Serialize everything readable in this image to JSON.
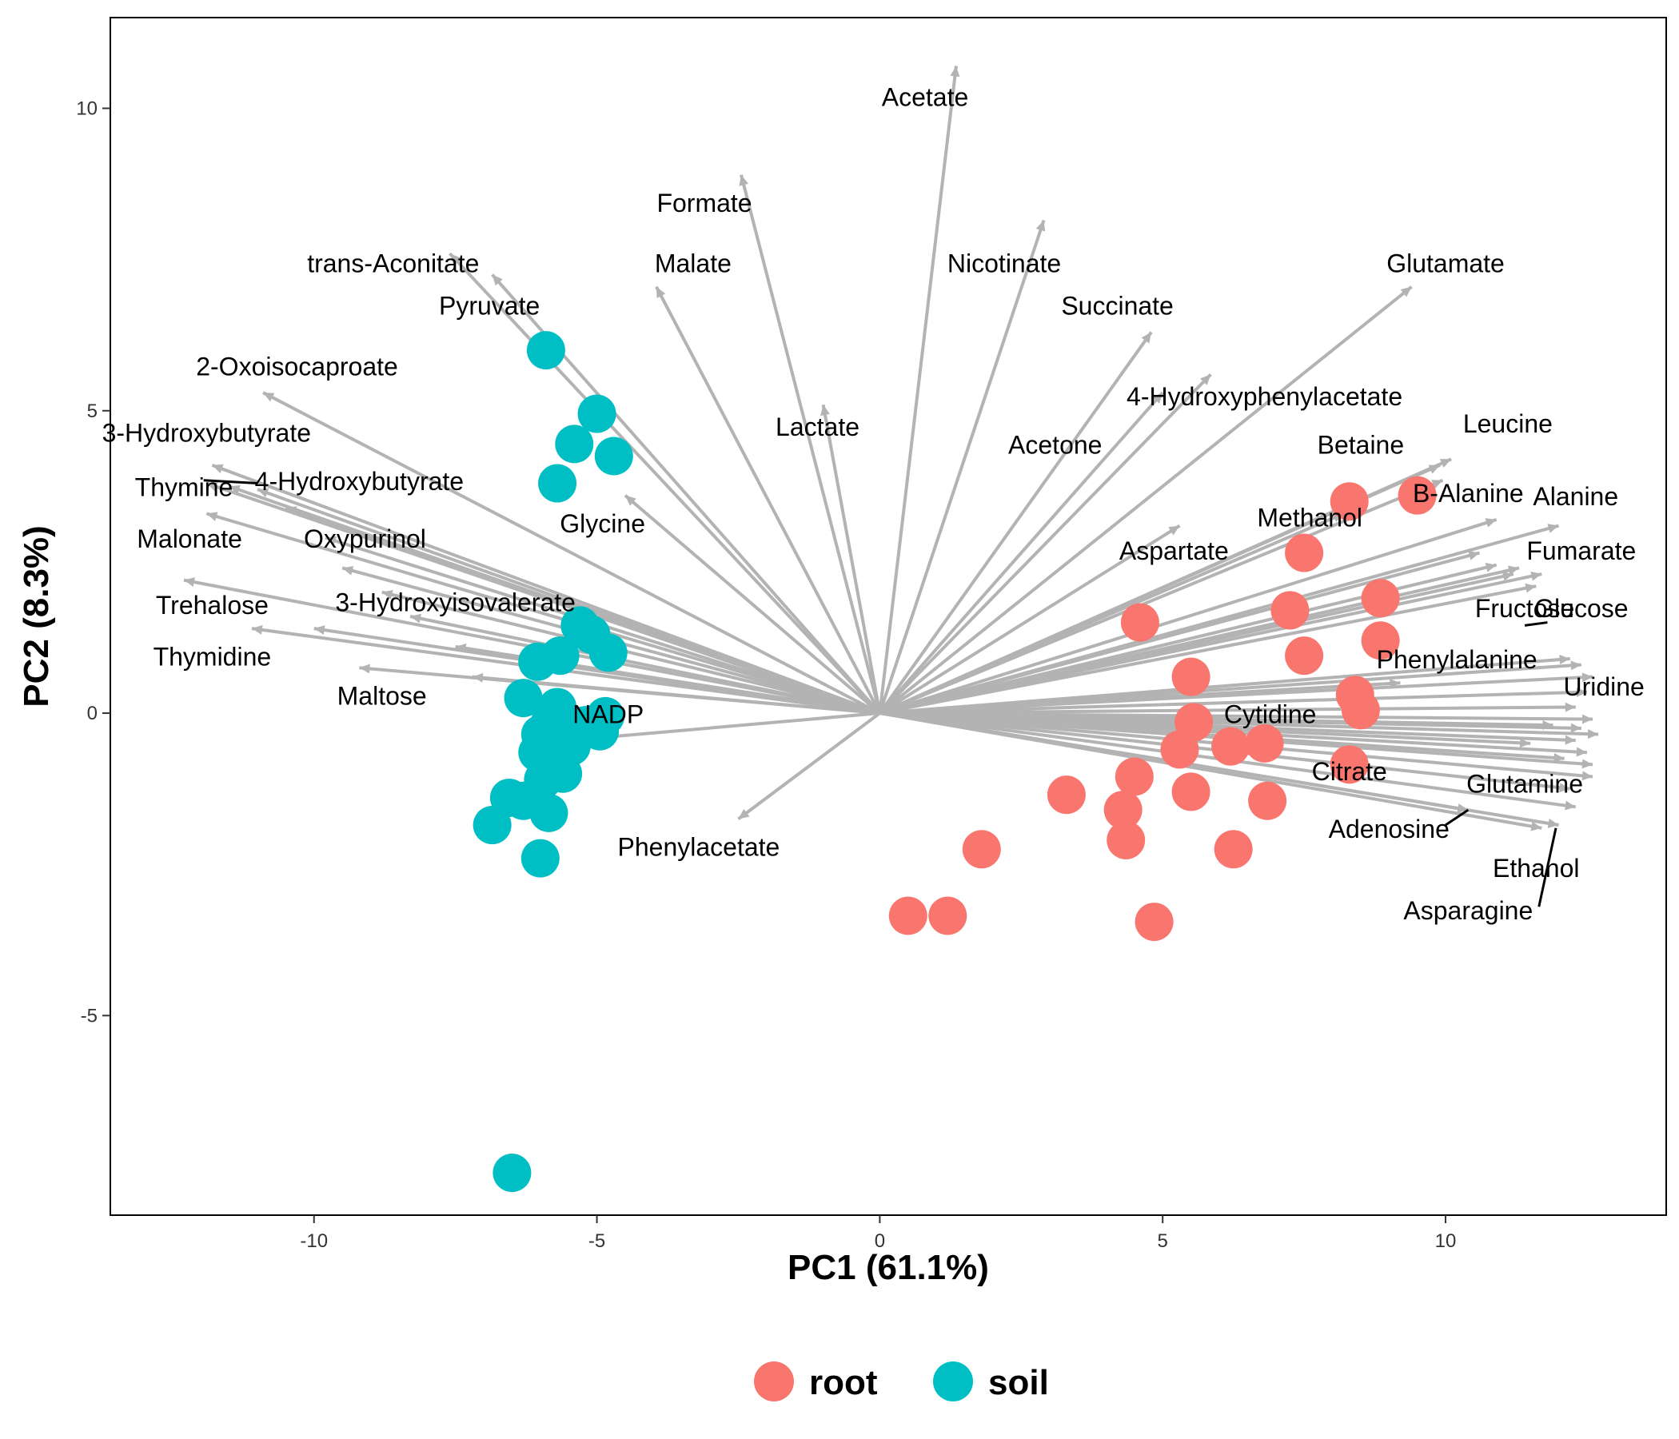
{
  "chart_data": {
    "type": "scatter",
    "subtype": "pca-biplot",
    "xlabel": "PC1 (61.1%)",
    "ylabel": "PC2 (8.3%)",
    "xlim": [
      -13.6,
      13.9
    ],
    "ylim": [
      -8.3,
      11.5
    ],
    "xticks": [
      -10,
      -5,
      0,
      5,
      10
    ],
    "yticks": [
      -5,
      0,
      5,
      10
    ],
    "xtick_labels": [
      "-10",
      "-5",
      "0",
      "5",
      "10"
    ],
    "ytick_labels": [
      "-5",
      "0",
      "5",
      "10"
    ],
    "grid": false,
    "legend_position": "bottom",
    "colors": {
      "root": "#F8766D",
      "soil": "#00BFC4",
      "arrow": "#b3b3b3"
    },
    "legend": [
      {
        "name": "root",
        "color": "#F8766D"
      },
      {
        "name": "soil",
        "color": "#00BFC4"
      }
    ],
    "series": [
      {
        "name": "root",
        "color": "#F8766D",
        "points": [
          [
            8.3,
            3.5
          ],
          [
            9.5,
            3.6
          ],
          [
            7.5,
            2.65
          ],
          [
            8.85,
            1.9
          ],
          [
            7.25,
            1.7
          ],
          [
            8.85,
            1.2
          ],
          [
            7.5,
            0.95
          ],
          [
            4.6,
            1.5
          ],
          [
            5.5,
            0.6
          ],
          [
            8.4,
            0.3
          ],
          [
            8.5,
            0.05
          ],
          [
            5.55,
            -0.15
          ],
          [
            6.8,
            -0.5
          ],
          [
            6.2,
            -0.55
          ],
          [
            5.3,
            -0.6
          ],
          [
            8.3,
            -0.85
          ],
          [
            4.5,
            -1.05
          ],
          [
            5.5,
            -1.3
          ],
          [
            3.3,
            -1.35
          ],
          [
            6.85,
            -1.45
          ],
          [
            4.3,
            -1.6
          ],
          [
            4.35,
            -2.1
          ],
          [
            1.8,
            -2.25
          ],
          [
            6.25,
            -2.25
          ],
          [
            0.5,
            -3.35
          ],
          [
            1.2,
            -3.35
          ],
          [
            4.85,
            -3.45
          ]
        ]
      },
      {
        "name": "soil",
        "color": "#00BFC4",
        "points": [
          [
            -5.9,
            6.0
          ],
          [
            -5.0,
            4.95
          ],
          [
            -5.4,
            4.45
          ],
          [
            -4.7,
            4.25
          ],
          [
            -5.7,
            3.8
          ],
          [
            -5.3,
            1.45
          ],
          [
            -5.1,
            1.3
          ],
          [
            -4.8,
            1.0
          ],
          [
            -5.65,
            0.95
          ],
          [
            -6.05,
            0.85
          ],
          [
            -6.3,
            0.25
          ],
          [
            -5.7,
            0.1
          ],
          [
            -5.85,
            -0.2
          ],
          [
            -6.0,
            -0.35
          ],
          [
            -5.2,
            -0.2
          ],
          [
            -4.85,
            -0.05
          ],
          [
            -5.55,
            -0.45
          ],
          [
            -4.95,
            -0.3
          ],
          [
            -5.45,
            -0.55
          ],
          [
            -6.05,
            -0.65
          ],
          [
            -5.75,
            -0.7
          ],
          [
            -5.6,
            -1.0
          ],
          [
            -5.95,
            -1.1
          ],
          [
            -6.55,
            -1.4
          ],
          [
            -6.3,
            -1.45
          ],
          [
            -5.85,
            -1.65
          ],
          [
            -6.85,
            -1.85
          ],
          [
            -6.0,
            -2.4
          ],
          [
            -6.5,
            -7.6
          ]
        ]
      }
    ],
    "loadings": [
      {
        "name": "Acetate",
        "x": 1.35,
        "y": 10.7,
        "label_x": 0.8,
        "label_y": 10.15
      },
      {
        "name": "Formate",
        "x": -2.45,
        "y": 8.9,
        "label_x": -3.1,
        "label_y": 8.4
      },
      {
        "name": "Nicotinate",
        "x": 2.9,
        "y": 8.15,
        "label_x": 2.2,
        "label_y": 7.4
      },
      {
        "name": "trans-Aconitate",
        "x": -7.6,
        "y": 7.6,
        "label_x": -8.6,
        "label_y": 7.4
      },
      {
        "name": "Malate",
        "x": -3.95,
        "y": 7.05,
        "label_x": -3.3,
        "label_y": 7.4
      },
      {
        "name": "Pyruvate",
        "x": -6.85,
        "y": 7.25,
        "label_x": -6.9,
        "label_y": 6.7
      },
      {
        "name": "Glutamate",
        "x": 9.4,
        "y": 7.05,
        "label_x": 10.0,
        "label_y": 7.4
      },
      {
        "name": "Succinate",
        "x": 4.8,
        "y": 6.3,
        "label_x": 4.2,
        "label_y": 6.7
      },
      {
        "name": "4-Hydroxyphenylacetate",
        "x": 5.85,
        "y": 5.6,
        "label_x": 6.8,
        "label_y": 5.2
      },
      {
        "name": "2-Oxoisocaproate",
        "x": -10.9,
        "y": 5.3,
        "label_x": -10.3,
        "label_y": 5.7
      },
      {
        "name": "Lactate",
        "x": -1.0,
        "y": 5.1,
        "label_x": -1.1,
        "label_y": 4.7
      },
      {
        "name": "Acetone",
        "x": 5.0,
        "y": 5.3,
        "label_x": 3.1,
        "label_y": 4.4
      },
      {
        "name": "3-Hydroxybutyrate",
        "x": -11.8,
        "y": 4.1,
        "label_x": -11.9,
        "label_y": 4.6
      },
      {
        "name": "Leucine",
        "x": 10.1,
        "y": 4.2,
        "label_x": 11.1,
        "label_y": 4.75
      },
      {
        "name": "Betaine",
        "x": 9.9,
        "y": 4.1,
        "label_x": 8.5,
        "label_y": 4.4
      },
      {
        "name": "Thymine",
        "x": -11.9,
        "y": 3.8,
        "label_x": -12.3,
        "label_y": 3.7
      },
      {
        "name": "4-Hydroxybutyrate",
        "x": -11.5,
        "y": 3.75,
        "label_x": -9.2,
        "label_y": 3.8
      },
      {
        "name": "Glycine",
        "x": -4.5,
        "y": 3.6,
        "label_x": -4.9,
        "label_y": 3.1
      },
      {
        "name": "B-Alanine",
        "x": 9.95,
        "y": 3.85,
        "label_x": 10.4,
        "label_y": 3.6
      },
      {
        "name": "Alanine",
        "x": 10.9,
        "y": 3.2,
        "label_x": 12.3,
        "label_y": 3.55
      },
      {
        "name": "Methanol",
        "x": 8.2,
        "y": 3.3,
        "label_x": 7.6,
        "label_y": 3.2
      },
      {
        "name": "Malonate",
        "x": -11.9,
        "y": 3.3,
        "label_x": -12.2,
        "label_y": 2.85
      },
      {
        "name": "Oxypurinol",
        "x": -9.5,
        "y": 2.4,
        "label_x": -9.1,
        "label_y": 2.85
      },
      {
        "name": "Aspartate",
        "x": 5.3,
        "y": 3.1,
        "label_x": 5.2,
        "label_y": 2.65
      },
      {
        "name": "Fumarate",
        "x": 12.0,
        "y": 3.1,
        "label_x": 12.4,
        "label_y": 2.65
      },
      {
        "name": "Trehalose",
        "x": -12.3,
        "y": 2.2,
        "label_x": -11.8,
        "label_y": 1.75
      },
      {
        "name": "3-Hydroxyisovalerate",
        "x": -10.0,
        "y": 1.4,
        "label_x": -7.5,
        "label_y": 1.8
      },
      {
        "name": "Glucose",
        "x": 11.7,
        "y": 2.3,
        "label_x": 12.4,
        "label_y": 1.7
      },
      {
        "name": "Fructose",
        "x": 11.3,
        "y": 2.4,
        "label_x": 11.4,
        "label_y": 1.7
      },
      {
        "name": "Thymidine",
        "x": -11.1,
        "y": 1.4,
        "label_x": -11.8,
        "label_y": 0.9
      },
      {
        "name": "Phenylalanine",
        "x": 9.2,
        "y": 0.5,
        "label_x": 10.2,
        "label_y": 0.85
      },
      {
        "name": "Maltose",
        "x": -9.2,
        "y": 0.75,
        "label_x": -8.8,
        "label_y": 0.25
      },
      {
        "name": "Uridine",
        "x": 12.2,
        "y": 0.9,
        "label_x": 12.8,
        "label_y": 0.4
      },
      {
        "name": "NADP",
        "x": -5.5,
        "y": -0.45,
        "label_x": -4.8,
        "label_y": -0.05
      },
      {
        "name": "Cytidine",
        "x": 11.9,
        "y": -0.2,
        "label_x": 6.9,
        "label_y": -0.05
      },
      {
        "name": "Citrate",
        "x": 11.5,
        "y": -0.5,
        "label_x": 8.3,
        "label_y": -1.0
      },
      {
        "name": "Glutamine",
        "x": 12.3,
        "y": -1.55,
        "label_x": 11.4,
        "label_y": -1.2
      },
      {
        "name": "Adenosine",
        "x": 10.4,
        "y": -1.6,
        "label_x": 9.0,
        "label_y": -1.95
      },
      {
        "name": "Phenylacetate",
        "x": -2.5,
        "y": -1.75,
        "label_x": -3.2,
        "label_y": -2.25
      },
      {
        "name": "Ethanol",
        "x": 11.7,
        "y": -1.9,
        "label_x": 11.6,
        "label_y": -2.6
      },
      {
        "name": "Asparagine",
        "x": 12.0,
        "y": -1.85,
        "label_x": 10.4,
        "label_y": -3.3
      }
    ],
    "unlabeled_arrows": [
      [
        11.2,
        2.3
      ],
      [
        10.9,
        2.45
      ],
      [
        10.6,
        2.65
      ],
      [
        11.6,
        2.1
      ],
      [
        12.4,
        0.8
      ],
      [
        12.6,
        0.6
      ],
      [
        12.5,
        0.35
      ],
      [
        12.3,
        0.1
      ],
      [
        12.6,
        -0.1
      ],
      [
        12.4,
        -0.25
      ],
      [
        12.7,
        -0.35
      ],
      [
        12.3,
        -0.45
      ],
      [
        12.5,
        -0.65
      ],
      [
        12.1,
        -0.75
      ],
      [
        12.6,
        -0.85
      ],
      [
        12.6,
        -1.05
      ],
      [
        12.2,
        -1.25
      ],
      [
        -11.0,
        3.7
      ],
      [
        -10.5,
        3.4
      ],
      [
        -9.8,
        2.9
      ],
      [
        -8.8,
        2.0
      ],
      [
        -8.3,
        1.6
      ],
      [
        -7.5,
        1.1
      ],
      [
        -7.2,
        0.6
      ]
    ],
    "label_connectors": [
      {
        "name": "Thymine",
        "from": [
          -11.0,
          3.8
        ],
        "to": [
          -11.95,
          3.85
        ]
      },
      {
        "name": "Glucose",
        "from": [
          11.8,
          1.5
        ],
        "to": [
          11.4,
          1.45
        ]
      },
      {
        "name": "Adenosine",
        "from": [
          10.0,
          -1.85
        ],
        "to": [
          10.4,
          -1.6
        ]
      },
      {
        "name": "Asparagine",
        "from": [
          11.65,
          -3.2
        ],
        "to": [
          11.95,
          -1.9
        ]
      }
    ]
  }
}
